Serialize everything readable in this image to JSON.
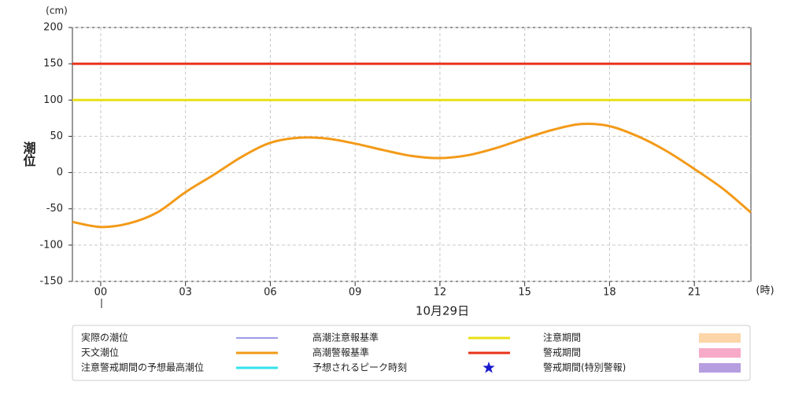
{
  "chart_data": {
    "type": "line",
    "y_unit": "(cm)",
    "y_label": "潮位",
    "x_unit": "(時)",
    "date_label": "10月29日",
    "grid": true,
    "x": [
      -1,
      0,
      1,
      2,
      3,
      4,
      5,
      6,
      7,
      8,
      9,
      10,
      11,
      12,
      13,
      14,
      15,
      16,
      17,
      18,
      19,
      20,
      21,
      22,
      23
    ],
    "xlim": [
      -1,
      23
    ],
    "xticks": [
      {
        "value": 0,
        "label": "00"
      },
      {
        "value": 3,
        "label": "03"
      },
      {
        "value": 6,
        "label": "06"
      },
      {
        "value": 9,
        "label": "09"
      },
      {
        "value": 12,
        "label": "12"
      },
      {
        "value": 15,
        "label": "15"
      },
      {
        "value": 18,
        "label": "18"
      },
      {
        "value": 21,
        "label": "21"
      }
    ],
    "ylim": [
      -150,
      200
    ],
    "yticks": [
      -150,
      -100,
      -50,
      0,
      50,
      100,
      150,
      200
    ],
    "series": [
      {
        "name": "実際の潮位",
        "color": "#3a3acc",
        "width": 1,
        "symbol": "line"
      },
      {
        "name": "天文潮位",
        "color": "#f39a18",
        "width": 3,
        "symbol": "line",
        "values": [
          -68,
          -75,
          -70,
          -55,
          -27,
          -3,
          22,
          41,
          48,
          47,
          40,
          31,
          23,
          20,
          24,
          34,
          47,
          59,
          67,
          64,
          50,
          30,
          5,
          -22,
          -55
        ]
      },
      {
        "name": "注意警戒期間の予想最高潮位",
        "color": "#33e2ea",
        "width": 3,
        "symbol": "line"
      },
      {
        "name": "高潮注意報基準",
        "color": "#e8e018",
        "width": 3,
        "symbol": "line",
        "value": 100
      },
      {
        "name": "高潮警報基準",
        "color": "#e8321a",
        "width": 3,
        "symbol": "line",
        "value": 150
      },
      {
        "name": "予想されるピーク時刻",
        "color": "#1a1acc",
        "symbol": "star"
      },
      {
        "name": "注意期間",
        "color": "#fcd5a8",
        "symbol": "band"
      },
      {
        "name": "警戒期間",
        "color": "#f7aac8",
        "symbol": "band"
      },
      {
        "name": "警戒期間(特別警報)",
        "color": "#b69de0",
        "symbol": "band"
      }
    ]
  }
}
